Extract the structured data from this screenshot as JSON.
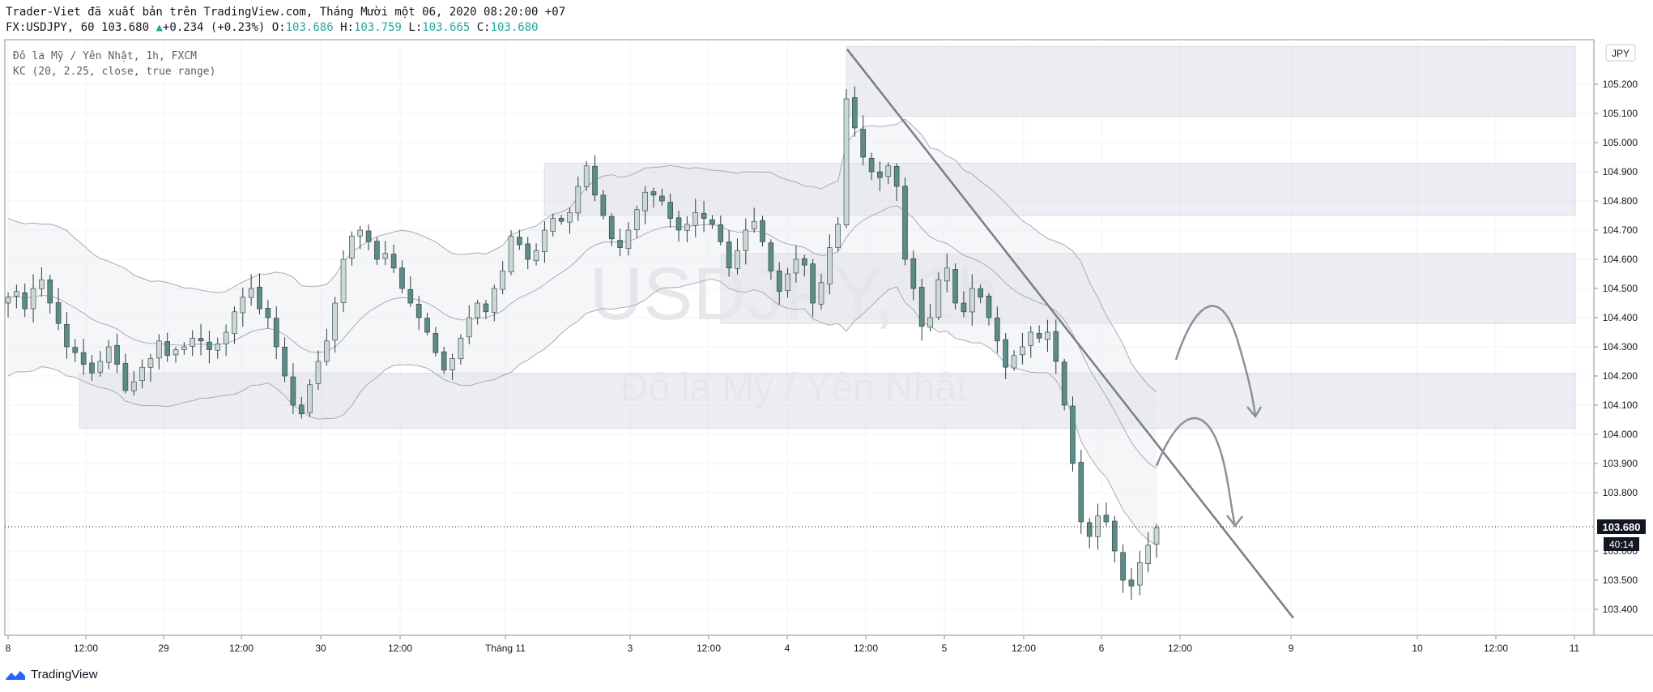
{
  "header": {
    "publisher_line": "Trader-Viet đã xuất bản trên TradingView.com, Tháng Mười một 06, 2020 08:20:00 +07",
    "symbol": "FX:USDJPY, 60",
    "last": "103.680",
    "change": "+0.234 (+0.23%)",
    "o_label": "O:",
    "o_value": "103.686",
    "h_label": "H:",
    "h_value": "103.759",
    "l_label": "L:",
    "l_value": "103.665",
    "c_label": "C:",
    "c_value": "103.680"
  },
  "legend": {
    "line1": "Đô la Mỹ / Yên Nhật, 1h, FXCM",
    "line2": "KC (20, 2.25, close, true range)"
  },
  "watermark": {
    "ticker": "USDJPY, 1h",
    "name": "Đô la Mỹ / Yên Nhật"
  },
  "footer": {
    "brand": "TradingView"
  },
  "chart_data": {
    "type": "candlestick",
    "currency": "JPY",
    "y_axis_ticks": [
      "105.200",
      "105.100",
      "105.000",
      "104.900",
      "104.800",
      "104.700",
      "104.600",
      "104.500",
      "104.400",
      "104.300",
      "104.200",
      "104.100",
      "104.000",
      "103.900",
      "103.800",
      "103.600",
      "103.500",
      "103.400"
    ],
    "x_axis_ticks": [
      "8",
      "12:00",
      "29",
      "12:00",
      "30",
      "12:00",
      "Tháng 11",
      "3",
      "12:00",
      "4",
      "12:00",
      "5",
      "12:00",
      "6",
      "12:00",
      "9",
      "10",
      "12:00",
      "11"
    ],
    "last_price_label": "103.680",
    "countdown_label": "40:14",
    "ylim": [
      103.32,
      105.32
    ],
    "candles_close_approx": [
      104.47,
      104.49,
      104.43,
      104.5,
      104.53,
      104.45,
      104.38,
      104.3,
      104.28,
      104.24,
      104.21,
      104.25,
      104.3,
      104.24,
      104.15,
      104.18,
      104.23,
      104.26,
      104.32,
      104.27,
      104.29,
      104.3,
      104.33,
      104.32,
      104.29,
      104.31,
      104.35,
      104.42,
      104.47,
      104.5,
      104.43,
      104.4,
      104.3,
      104.2,
      104.1,
      104.07,
      104.17,
      104.25,
      104.32,
      104.45,
      104.6,
      104.68,
      104.7,
      104.66,
      104.6,
      104.62,
      104.57,
      104.5,
      104.45,
      104.4,
      104.35,
      104.28,
      104.22,
      104.26,
      104.33,
      104.4,
      104.45,
      104.42,
      104.5,
      104.56,
      104.68,
      104.65,
      104.6,
      104.63,
      104.7,
      104.74,
      104.73,
      104.76,
      104.85,
      104.92,
      104.82,
      104.75,
      104.67,
      104.64,
      104.7,
      104.77,
      104.83,
      104.82,
      104.8,
      104.74,
      104.7,
      104.72,
      104.76,
      104.74,
      104.72,
      104.66,
      104.57,
      104.63,
      104.7,
      104.73,
      104.66,
      104.56,
      104.49,
      104.55,
      104.6,
      104.58,
      104.45,
      104.52,
      104.64,
      104.72,
      105.15,
      105.05,
      104.95,
      104.9,
      104.88,
      104.92,
      104.85,
      104.6,
      104.5,
      104.37,
      104.4,
      104.53,
      104.57,
      104.45,
      104.42,
      104.5,
      104.47,
      104.4,
      104.32,
      104.23,
      104.27,
      104.3,
      104.35,
      104.33,
      104.35,
      104.25,
      104.1,
      103.9,
      103.7,
      103.65,
      103.72,
      103.7,
      103.6,
      103.5,
      103.48,
      103.56,
      103.62,
      103.68
    ],
    "keltner_channel": {
      "upper": "envelope above price",
      "middle": "20-period EMA",
      "lower": "envelope below price"
    },
    "resistance_zones": [
      {
        "from": 105.09,
        "to": 105.33
      },
      {
        "from": 104.75,
        "to": 104.93
      },
      {
        "from": 104.38,
        "to": 104.62
      },
      {
        "from": 104.02,
        "to": 104.21
      }
    ],
    "trendline": {
      "start_price": 105.32,
      "end_price": 103.37
    },
    "projection_arrows": 2
  }
}
